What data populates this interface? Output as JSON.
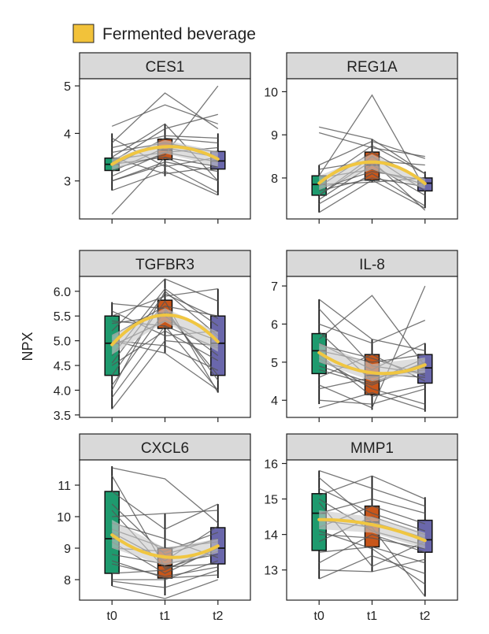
{
  "legend": {
    "label": "Fermented beverage",
    "color": "#f2c23a"
  },
  "ylabel": "NPX",
  "colors": {
    "t0": "#1e9a6e",
    "t1": "#c8561a",
    "t2": "#6a67ab",
    "mean": "#f0c641",
    "band": "#c8c8c8",
    "line": "#555555",
    "header": "#d9d9d9"
  },
  "chart_data": [
    {
      "type": "box-line",
      "title": "CES1",
      "categories": [
        "t0",
        "t1",
        "t2"
      ],
      "ylim": [
        2.2,
        5.15
      ],
      "yticks": [
        3,
        4,
        5
      ],
      "ytick_labels": [
        "3",
        "4",
        "5"
      ],
      "box": [
        {
          "whisker_low": 2.8,
          "q1": 3.22,
          "median": 3.35,
          "q3": 3.48,
          "whisker_high": 4.0
        },
        {
          "whisker_low": 3.1,
          "q1": 3.45,
          "median": 3.65,
          "q3": 3.88,
          "whisker_high": 4.2
        },
        {
          "whisker_low": 2.7,
          "q1": 3.25,
          "median": 3.42,
          "q3": 3.62,
          "whisker_high": 4.0
        }
      ],
      "mean": [
        3.35,
        3.72,
        3.46
      ],
      "band": [
        [
          3.23,
          3.47
        ],
        [
          3.58,
          3.86
        ],
        [
          3.3,
          3.62
        ]
      ],
      "subjects": [
        [
          2.3,
          3.5,
          3.0
        ],
        [
          2.8,
          3.2,
          2.7
        ],
        [
          3.0,
          3.4,
          3.2
        ],
        [
          3.1,
          3.6,
          3.4
        ],
        [
          3.2,
          3.7,
          3.5
        ],
        [
          3.3,
          3.9,
          3.8
        ],
        [
          3.35,
          3.5,
          3.3
        ],
        [
          3.4,
          4.1,
          4.4
        ],
        [
          3.45,
          3.6,
          3.7
        ],
        [
          3.5,
          4.2,
          3.0
        ],
        [
          3.6,
          3.8,
          3.6
        ],
        [
          3.8,
          4.85,
          4.1
        ],
        [
          3.9,
          3.3,
          3.5
        ],
        [
          4.15,
          4.6,
          4.2
        ],
        [
          3.25,
          3.55,
          5.0
        ],
        [
          3.5,
          3.15,
          3.3
        ],
        [
          3.0,
          3.35,
          2.75
        ],
        [
          3.7,
          3.95,
          3.9
        ]
      ]
    },
    {
      "type": "box-line",
      "title": "REG1A",
      "categories": [
        "t0",
        "t1",
        "t2"
      ],
      "ylim": [
        7.05,
        10.3
      ],
      "yticks": [
        8,
        9,
        10
      ],
      "ytick_labels": [
        "8",
        "9",
        "10"
      ],
      "box": [
        {
          "whisker_low": 7.2,
          "q1": 7.6,
          "median": 7.85,
          "q3": 8.05,
          "whisker_high": 8.3
        },
        {
          "whisker_low": 7.9,
          "q1": 7.95,
          "median": 8.3,
          "q3": 8.6,
          "whisker_high": 8.9
        },
        {
          "whisker_low": 7.3,
          "q1": 7.7,
          "median": 7.88,
          "q3": 8.0,
          "whisker_high": 8.15
        }
      ],
      "mean": [
        7.88,
        8.37,
        7.87
      ],
      "band": [
        [
          7.72,
          8.05
        ],
        [
          8.2,
          8.55
        ],
        [
          7.75,
          7.98
        ]
      ],
      "subjects": [
        [
          7.2,
          7.95,
          7.3
        ],
        [
          7.4,
          8.1,
          7.35
        ],
        [
          7.5,
          8.3,
          7.6
        ],
        [
          7.6,
          8.5,
          7.7
        ],
        [
          7.7,
          8.0,
          7.8
        ],
        [
          7.8,
          8.6,
          7.9
        ],
        [
          7.85,
          7.9,
          8.0
        ],
        [
          7.9,
          8.75,
          8.1
        ],
        [
          8.0,
          8.2,
          7.85
        ],
        [
          8.05,
          9.92,
          7.75
        ],
        [
          8.2,
          8.4,
          8.3
        ],
        [
          8.3,
          8.85,
          8.45
        ],
        [
          9.05,
          8.7,
          8.5
        ],
        [
          9.18,
          8.9,
          8.1
        ],
        [
          7.6,
          8.4,
          7.25
        ],
        [
          7.75,
          8.15,
          7.95
        ]
      ]
    },
    {
      "type": "box-line",
      "title": "TGFBR3",
      "categories": [
        "t0",
        "t1",
        "t2"
      ],
      "ylim": [
        3.45,
        6.3
      ],
      "yticks": [
        3.5,
        4.0,
        4.5,
        5.0,
        5.5,
        6.0
      ],
      "ytick_labels": [
        "3.5",
        "4.0",
        "4.5",
        "5.0",
        "5.5",
        "6.0"
      ],
      "box": [
        {
          "whisker_low": 3.62,
          "q1": 4.3,
          "median": 4.95,
          "q3": 5.5,
          "whisker_high": 5.78
        },
        {
          "whisker_low": 4.75,
          "q1": 5.25,
          "median": 5.55,
          "q3": 5.82,
          "whisker_high": 6.25
        },
        {
          "whisker_low": 3.95,
          "q1": 4.3,
          "median": 4.95,
          "q3": 5.5,
          "whisker_high": 6.05
        }
      ],
      "mean": [
        4.92,
        5.52,
        4.98
      ],
      "band": [
        [
          4.72,
          5.12
        ],
        [
          5.38,
          5.66
        ],
        [
          4.78,
          5.18
        ]
      ],
      "subjects": [
        [
          3.62,
          5.0,
          4.9
        ],
        [
          3.85,
          5.3,
          4.0
        ],
        [
          4.1,
          5.6,
          4.3
        ],
        [
          4.3,
          5.8,
          3.95
        ],
        [
          4.5,
          5.2,
          4.6
        ],
        [
          4.7,
          6.05,
          5.3
        ],
        [
          4.9,
          5.4,
          5.0
        ],
        [
          5.0,
          4.9,
          4.4
        ],
        [
          5.1,
          5.7,
          5.5
        ],
        [
          5.2,
          6.25,
          5.8
        ],
        [
          5.35,
          5.5,
          4.7
        ],
        [
          5.5,
          5.9,
          6.05
        ],
        [
          5.6,
          5.1,
          5.2
        ],
        [
          5.75,
          5.65,
          4.2
        ],
        [
          4.0,
          6.0,
          5.1
        ],
        [
          5.0,
          4.75,
          4.0
        ],
        [
          4.55,
          5.95,
          5.45
        ],
        [
          5.4,
          5.3,
          4.85
        ]
      ]
    },
    {
      "type": "box-line",
      "title": "IL-8",
      "categories": [
        "t0",
        "t1",
        "t2"
      ],
      "ylim": [
        3.55,
        7.25
      ],
      "yticks": [
        4,
        5,
        6,
        7
      ],
      "ytick_labels": [
        "4",
        "5",
        "6",
        "7"
      ],
      "box": [
        {
          "whisker_low": 3.9,
          "q1": 4.7,
          "median": 5.3,
          "q3": 5.75,
          "whisker_high": 6.65
        },
        {
          "whisker_low": 3.75,
          "q1": 4.15,
          "median": 4.65,
          "q3": 5.2,
          "whisker_high": 5.6
        },
        {
          "whisker_low": 3.7,
          "q1": 4.45,
          "median": 4.85,
          "q3": 5.2,
          "whisker_high": 5.5
        }
      ],
      "mean": [
        5.25,
        4.72,
        4.93
      ],
      "band": [
        [
          5.0,
          5.5
        ],
        [
          4.5,
          4.95
        ],
        [
          4.72,
          5.12
        ]
      ],
      "subjects": [
        [
          3.8,
          4.2,
          3.75
        ],
        [
          4.0,
          3.9,
          4.3
        ],
        [
          4.3,
          4.6,
          4.8
        ],
        [
          4.6,
          5.2,
          4.5
        ],
        [
          4.8,
          4.4,
          5.0
        ],
        [
          5.0,
          4.7,
          4.6
        ],
        [
          5.2,
          4.1,
          4.4
        ],
        [
          5.3,
          5.0,
          5.2
        ],
        [
          5.5,
          4.8,
          5.5
        ],
        [
          5.6,
          6.75,
          4.9
        ],
        [
          5.8,
          4.5,
          5.1
        ],
        [
          6.0,
          5.5,
          6.1
        ],
        [
          6.4,
          4.9,
          4.7
        ],
        [
          6.65,
          5.6,
          5.3
        ],
        [
          4.4,
          3.8,
          7.0
        ],
        [
          5.1,
          4.3,
          3.9
        ],
        [
          5.45,
          5.1,
          4.65
        ],
        [
          4.9,
          4.45,
          5.0
        ]
      ]
    },
    {
      "type": "box-line",
      "title": "CXCL6",
      "categories": [
        "t0",
        "t1",
        "t2"
      ],
      "ylim": [
        7.35,
        11.8
      ],
      "yticks": [
        8,
        9,
        10,
        11
      ],
      "ytick_labels": [
        "8",
        "9",
        "10",
        "11"
      ],
      "box": [
        {
          "whisker_low": 7.8,
          "q1": 8.2,
          "median": 9.3,
          "q3": 10.8,
          "whisker_high": 11.6
        },
        {
          "whisker_low": 7.5,
          "q1": 8.05,
          "median": 8.45,
          "q3": 9.0,
          "whisker_high": 10.1
        },
        {
          "whisker_low": 8.05,
          "q1": 8.5,
          "median": 9.0,
          "q3": 9.65,
          "whisker_high": 10.4
        }
      ],
      "mean": [
        9.42,
        8.72,
        9.07
      ],
      "band": [
        [
          9.0,
          9.9
        ],
        [
          8.45,
          9.0
        ],
        [
          8.85,
          9.3
        ]
      ],
      "subjects": [
        [
          7.8,
          7.4,
          8.0
        ],
        [
          8.0,
          8.0,
          8.6
        ],
        [
          8.2,
          8.3,
          9.1
        ],
        [
          8.5,
          8.1,
          8.4
        ],
        [
          8.8,
          8.5,
          8.8
        ],
        [
          9.0,
          8.9,
          9.5
        ],
        [
          9.2,
          8.2,
          9.0
        ],
        [
          9.5,
          8.6,
          9.7
        ],
        [
          9.8,
          9.3,
          8.7
        ],
        [
          10.0,
          10.1,
          10.2
        ],
        [
          10.4,
          8.8,
          9.3
        ],
        [
          10.8,
          9.6,
          10.4
        ],
        [
          11.3,
          8.4,
          8.5
        ],
        [
          11.55,
          11.2,
          9.8
        ],
        [
          8.6,
          8.05,
          8.15
        ],
        [
          9.6,
          9.0,
          9.2
        ],
        [
          10.2,
          8.35,
          8.9
        ],
        [
          7.95,
          7.75,
          8.3
        ]
      ]
    },
    {
      "type": "box-line",
      "title": "MMP1",
      "categories": [
        "t0",
        "t1",
        "t2"
      ],
      "ylim": [
        12.15,
        16.1
      ],
      "yticks": [
        13,
        14,
        15,
        16
      ],
      "ytick_labels": [
        "13",
        "14",
        "15",
        "16"
      ],
      "box": [
        {
          "whisker_low": 12.75,
          "q1": 13.55,
          "median": 14.6,
          "q3": 15.15,
          "whisker_high": 15.8
        },
        {
          "whisker_low": 12.95,
          "q1": 13.65,
          "median": 14.35,
          "q3": 14.8,
          "whisker_high": 15.65
        },
        {
          "whisker_low": 12.25,
          "q1": 13.5,
          "median": 13.85,
          "q3": 14.4,
          "whisker_high": 15.05
        }
      ],
      "mean": [
        14.42,
        14.28,
        13.83
      ],
      "band": [
        [
          14.15,
          14.68
        ],
        [
          14.05,
          14.5
        ],
        [
          13.6,
          14.05
        ]
      ],
      "subjects": [
        [
          12.75,
          13.4,
          12.9
        ],
        [
          13.2,
          14.0,
          13.5
        ],
        [
          13.5,
          13.65,
          13.2
        ],
        [
          13.8,
          14.5,
          14.0
        ],
        [
          14.0,
          13.9,
          13.6
        ],
        [
          14.2,
          14.8,
          14.3
        ],
        [
          14.4,
          14.2,
          12.25
        ],
        [
          14.6,
          15.0,
          14.6
        ],
        [
          14.9,
          13.1,
          13.8
        ],
        [
          15.1,
          15.65,
          15.0
        ],
        [
          15.3,
          14.6,
          14.1
        ],
        [
          15.6,
          14.35,
          13.9
        ],
        [
          15.8,
          15.3,
          14.8
        ],
        [
          13.0,
          12.95,
          13.3
        ],
        [
          14.1,
          13.6,
          12.6
        ],
        [
          15.0,
          14.1,
          13.7
        ]
      ]
    }
  ]
}
